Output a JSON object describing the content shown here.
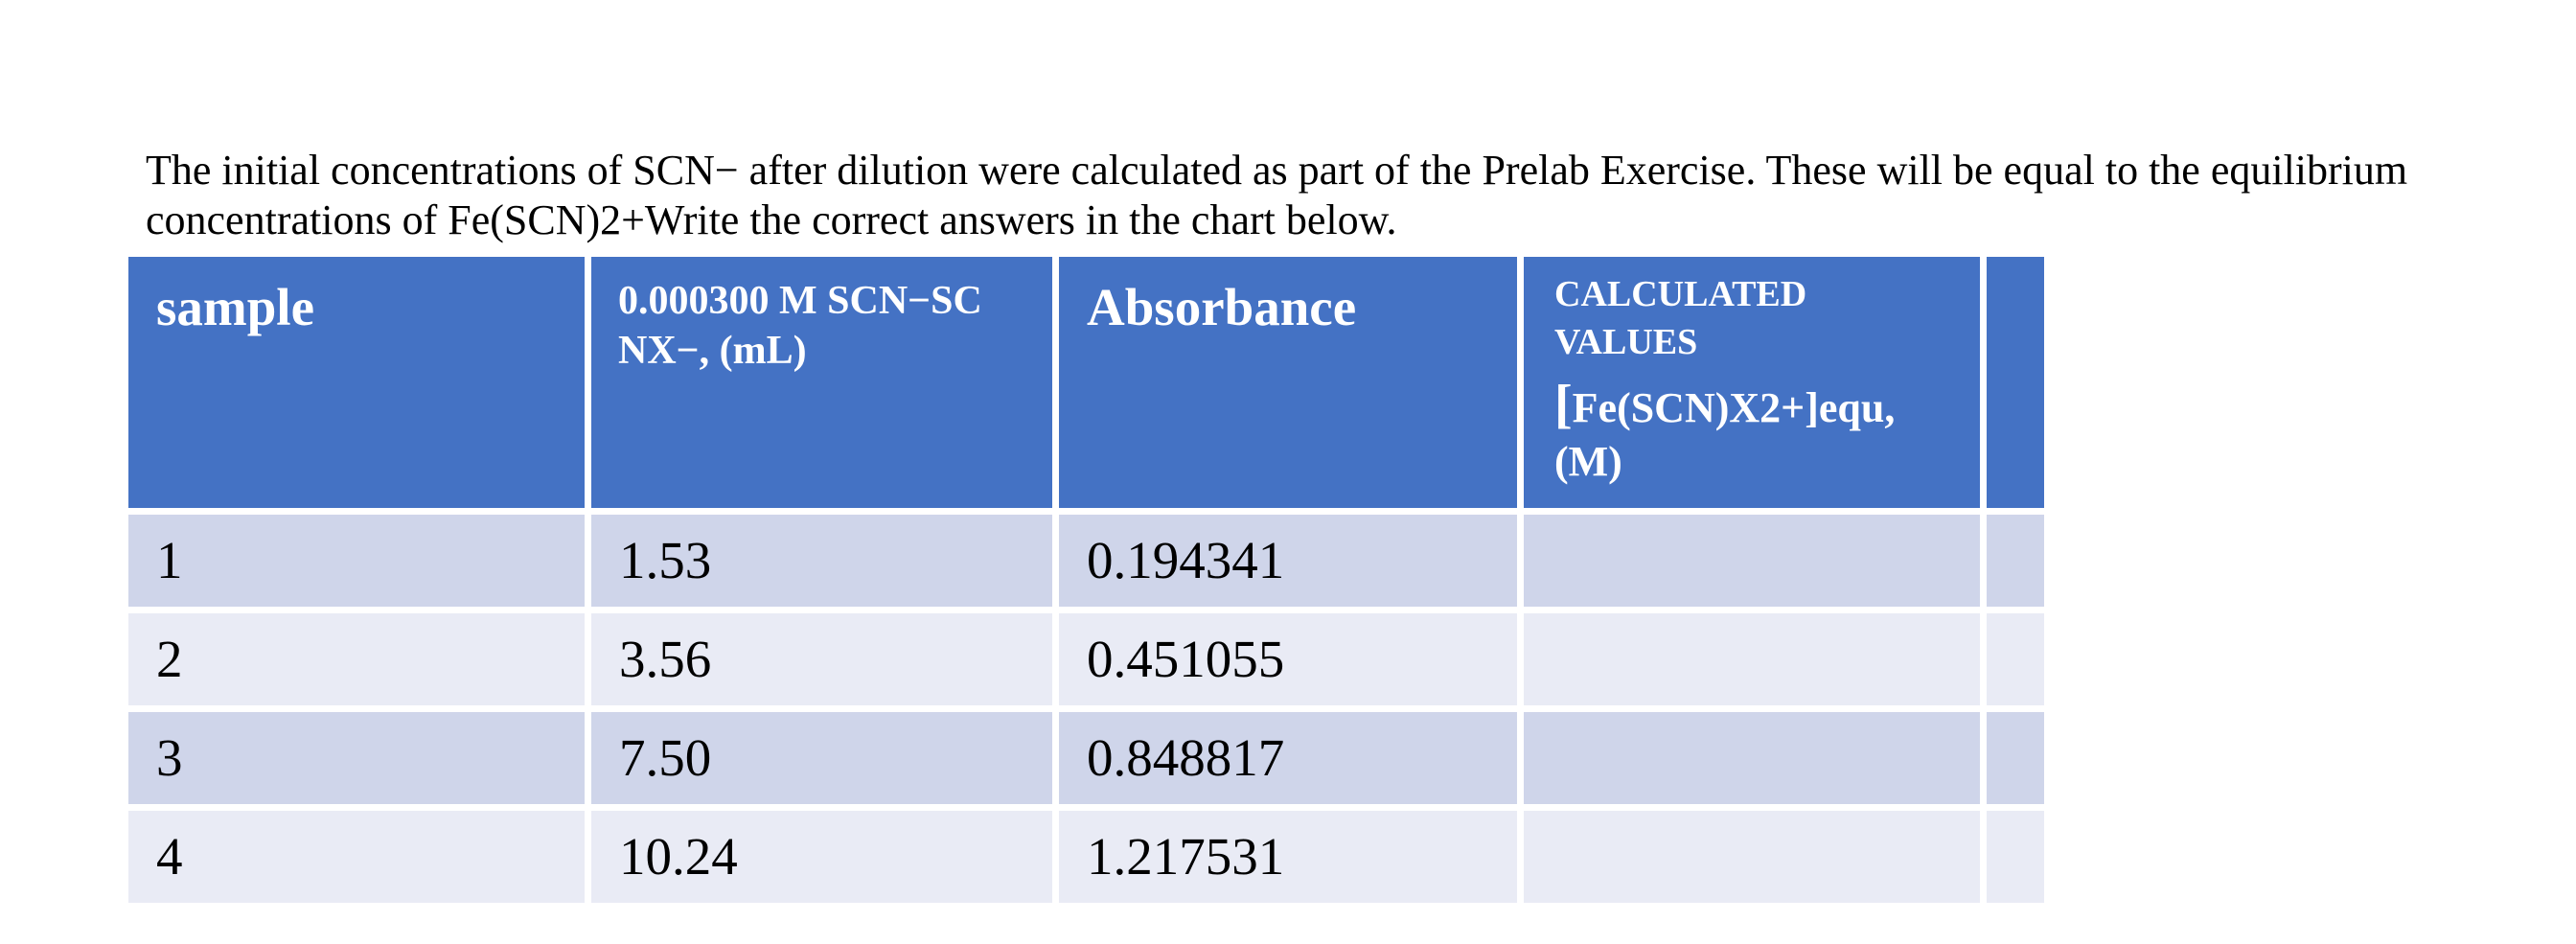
{
  "intro": {
    "line1": "The initial concentrations of SCN− after dilution were calculated as part of the Prelab Exercise. These will be equal to the equilibrium",
    "line2": "concentrations of Fe(SCN)2+Write the correct answers in the chart below."
  },
  "table": {
    "headers": {
      "sample": "sample",
      "volume_line1": "0.000300 M SCN−SC",
      "volume_line2": "NX−, (mL)",
      "absorbance": "Absorbance",
      "calculated_line1": "CALCULATED",
      "calculated_line2": "VALUES",
      "calculated_formula_bracket": "[",
      "calculated_formula": "Fe(SCN)X2+]equ,",
      "calculated_unit": "(M)",
      "extra": ""
    },
    "rows": [
      {
        "sample": "1",
        "volume": "1.53",
        "absorbance": "0.194341",
        "calculated": "",
        "extra": ""
      },
      {
        "sample": "2",
        "volume": "3.56",
        "absorbance": "0.451055",
        "calculated": "",
        "extra": ""
      },
      {
        "sample": "3",
        "volume": "7.50",
        "absorbance": "0.848817",
        "calculated": "",
        "extra": ""
      },
      {
        "sample": "4",
        "volume": "10.24",
        "absorbance": "1.217531",
        "calculated": "",
        "extra": ""
      }
    ]
  },
  "colors": {
    "header_bg": "#4472c4",
    "row_odd_bg": "#cfd5ea",
    "row_even_bg": "#e9ebf5"
  }
}
